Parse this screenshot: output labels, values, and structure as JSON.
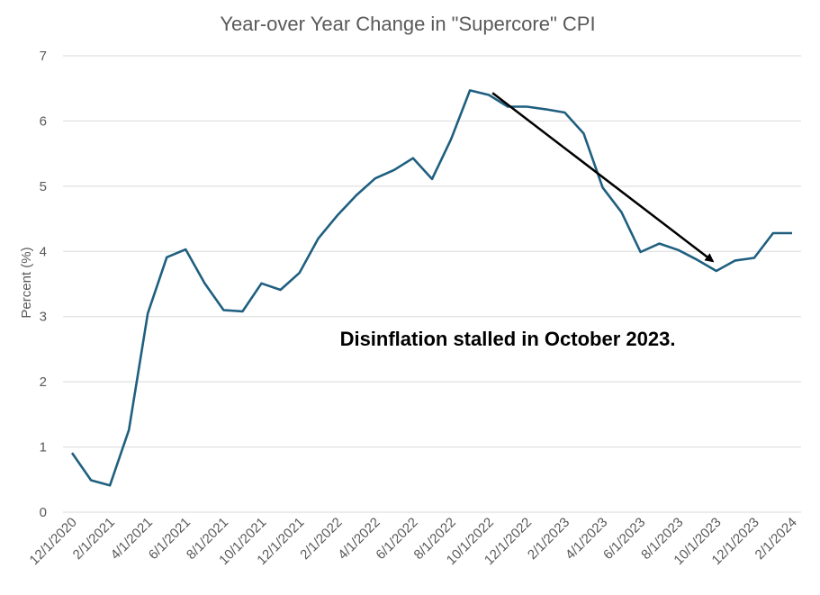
{
  "chart_data": {
    "type": "line",
    "title": "Year-over Year Change in \"Supercore\" CPI",
    "ylabel": "Percent (%)",
    "xlabel": "",
    "ylim": [
      0,
      7
    ],
    "yticks": [
      "0",
      "1",
      "2",
      "3",
      "4",
      "5",
      "6",
      "7"
    ],
    "grid": true,
    "legend": "none",
    "x_tick_labels": [
      "12/1/2020",
      "2/1/2021",
      "4/1/2021",
      "6/1/2021",
      "8/1/2021",
      "10/1/2021",
      "12/1/2021",
      "2/1/2022",
      "4/1/2022",
      "6/1/2022",
      "8/1/2022",
      "10/1/2022",
      "12/1/2022",
      "2/1/2023",
      "4/1/2023",
      "6/1/2023",
      "8/1/2023",
      "10/1/2023",
      "12/1/2023",
      "2/1/2024"
    ],
    "x": [
      "12/1/2020",
      "1/1/2021",
      "2/1/2021",
      "3/1/2021",
      "4/1/2021",
      "5/1/2021",
      "6/1/2021",
      "7/1/2021",
      "8/1/2021",
      "9/1/2021",
      "10/1/2021",
      "11/1/2021",
      "12/1/2021",
      "1/1/2022",
      "2/1/2022",
      "3/1/2022",
      "4/1/2022",
      "5/1/2022",
      "6/1/2022",
      "7/1/2022",
      "8/1/2022",
      "9/1/2022",
      "10/1/2022",
      "11/1/2022",
      "12/1/2022",
      "1/1/2023",
      "2/1/2023",
      "3/1/2023",
      "4/1/2023",
      "5/1/2023",
      "6/1/2023",
      "7/1/2023",
      "8/1/2023",
      "9/1/2023",
      "10/1/2023",
      "11/1/2023",
      "12/1/2023",
      "1/1/2024",
      "2/1/2024"
    ],
    "series": [
      {
        "values": [
          0.91,
          0.49,
          0.41,
          1.26,
          3.05,
          3.91,
          4.03,
          3.51,
          3.1,
          3.08,
          3.51,
          3.41,
          3.67,
          4.2,
          4.55,
          4.86,
          5.12,
          5.25,
          5.43,
          5.11,
          5.72,
          6.47,
          6.4,
          6.22,
          6.22,
          6.18,
          6.13,
          5.81,
          4.98,
          4.6,
          3.99,
          4.12,
          4.02,
          3.87,
          3.7,
          3.86,
          3.9,
          4.28,
          4.28
        ],
        "color": "#1f5f7f"
      }
    ],
    "annotations": [
      {
        "text": "Disinflation stalled in October 2023.",
        "arrow_from": {
          "x": "10/1/2022",
          "y": 6.43
        },
        "arrow_to": {
          "x": "10/1/2023",
          "y": 3.85
        }
      }
    ]
  }
}
